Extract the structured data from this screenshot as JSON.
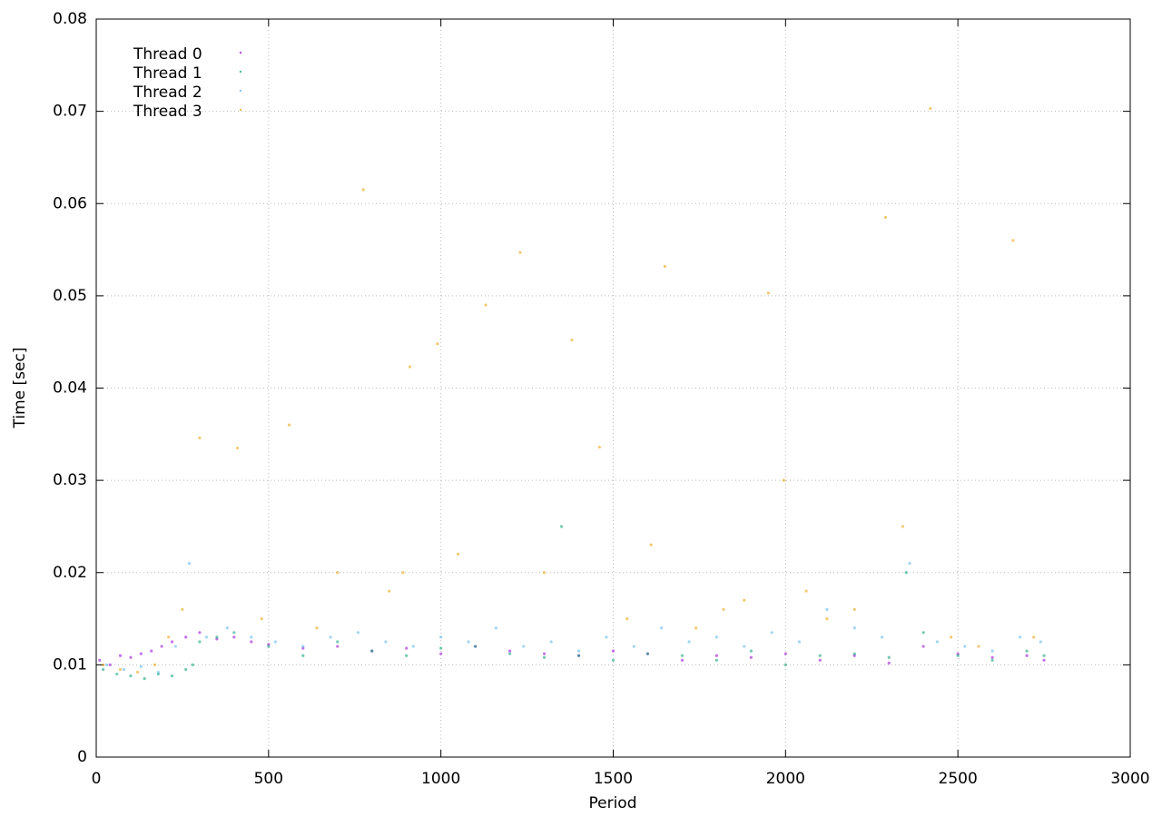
{
  "chart_data": {
    "type": "scatter",
    "xlabel": "Period",
    "ylabel": "Time [sec]",
    "xlim": [
      0,
      3000
    ],
    "xticks": [
      0,
      500,
      1000,
      1500,
      2000,
      2500,
      3000
    ],
    "ylim": [
      0,
      0.08
    ],
    "yticks": [
      0,
      0.01,
      0.02,
      0.03,
      0.04,
      0.05,
      0.06,
      0.07,
      0.08
    ],
    "grid": true,
    "legend": "top-left",
    "series": [
      {
        "name": "Thread 0",
        "color": "#9400d3",
        "x": [
          10,
          40,
          70,
          100,
          130,
          160,
          190,
          220,
          260,
          300,
          350,
          400,
          450,
          500,
          600,
          700,
          800,
          900,
          1000,
          1100,
          1200,
          1300,
          1400,
          1500,
          1600,
          1700,
          1800,
          1900,
          2000,
          2100,
          2200,
          2300,
          2400,
          2500,
          2600,
          2700,
          2750
        ],
        "values": [
          0.0105,
          0.01,
          0.011,
          0.0108,
          0.0112,
          0.0115,
          0.012,
          0.0125,
          0.013,
          0.0135,
          0.0128,
          0.013,
          0.0125,
          0.0122,
          0.0118,
          0.012,
          0.0115,
          0.0118,
          0.0112,
          0.012,
          0.0115,
          0.0112,
          0.011,
          0.0115,
          0.0112,
          0.0105,
          0.011,
          0.0108,
          0.0112,
          0.0105,
          0.011,
          0.0102,
          0.012,
          0.0112,
          0.0108,
          0.011,
          0.0105
        ]
      },
      {
        "name": "Thread 1",
        "color": "#009e73",
        "x": [
          20,
          60,
          100,
          140,
          180,
          220,
          260,
          280,
          300,
          350,
          400,
          500,
          600,
          700,
          800,
          900,
          1000,
          1100,
          1200,
          1300,
          1350,
          1400,
          1500,
          1600,
          1700,
          1800,
          1900,
          2000,
          2100,
          2200,
          2300,
          2350,
          2400,
          2500,
          2600,
          2700,
          2750
        ],
        "values": [
          0.0095,
          0.009,
          0.0088,
          0.0085,
          0.009,
          0.0088,
          0.0095,
          0.01,
          0.0125,
          0.013,
          0.0135,
          0.012,
          0.011,
          0.0125,
          0.0115,
          0.011,
          0.0118,
          0.012,
          0.0112,
          0.0108,
          0.025,
          0.011,
          0.0105,
          0.0112,
          0.011,
          0.0105,
          0.0115,
          0.01,
          0.011,
          0.0112,
          0.0108,
          0.02,
          0.0135,
          0.011,
          0.0105,
          0.0115,
          0.011
        ]
      },
      {
        "name": "Thread 2",
        "color": "#56b4e9",
        "x": [
          30,
          80,
          130,
          180,
          230,
          270,
          320,
          380,
          450,
          520,
          600,
          680,
          760,
          840,
          920,
          1000,
          1080,
          1160,
          1240,
          1320,
          1400,
          1480,
          1560,
          1640,
          1720,
          1800,
          1880,
          1960,
          2040,
          2120,
          2200,
          2280,
          2360,
          2440,
          2520,
          2600,
          2680,
          2740
        ],
        "values": [
          0.01,
          0.0095,
          0.0098,
          0.0092,
          0.012,
          0.021,
          0.013,
          0.014,
          0.013,
          0.0125,
          0.012,
          0.013,
          0.0135,
          0.0125,
          0.012,
          0.013,
          0.0125,
          0.014,
          0.012,
          0.0125,
          0.0115,
          0.013,
          0.012,
          0.014,
          0.0125,
          0.013,
          0.012,
          0.0135,
          0.0125,
          0.016,
          0.014,
          0.013,
          0.021,
          0.0125,
          0.012,
          0.0115,
          0.013,
          0.0125
        ]
      },
      {
        "name": "Thread 3",
        "color": "#e69f00",
        "x": [
          20,
          70,
          120,
          170,
          210,
          250,
          300,
          410,
          480,
          560,
          640,
          700,
          775,
          850,
          890,
          910,
          990,
          1050,
          1130,
          1230,
          1300,
          1380,
          1460,
          1540,
          1610,
          1650,
          1740,
          1820,
          1880,
          1950,
          1995,
          2060,
          2120,
          2200,
          2290,
          2340,
          2420,
          2480,
          2560,
          2660,
          2720
        ],
        "values": [
          0.01,
          0.0095,
          0.0092,
          0.01,
          0.013,
          0.016,
          0.0346,
          0.0335,
          0.015,
          0.036,
          0.014,
          0.02,
          0.0615,
          0.018,
          0.02,
          0.0423,
          0.0448,
          0.022,
          0.049,
          0.0547,
          0.02,
          0.0452,
          0.0336,
          0.015,
          0.023,
          0.0532,
          0.014,
          0.016,
          0.017,
          0.0503,
          0.03,
          0.018,
          0.015,
          0.016,
          0.0585,
          0.025,
          0.0703,
          0.013,
          0.012,
          0.056,
          0.013
        ]
      }
    ]
  }
}
